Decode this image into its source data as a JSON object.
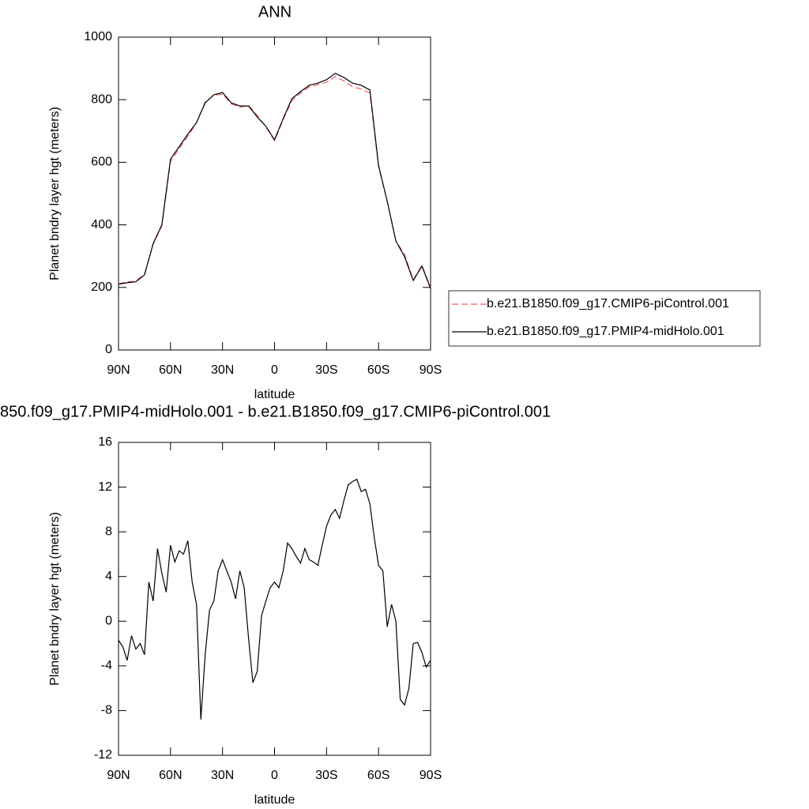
{
  "chart_data": [
    {
      "type": "line",
      "title": "ANN",
      "xlabel": "latitude",
      "ylabel": "Planet bndry layer hgt (meters)",
      "x": [
        90,
        85,
        80,
        75,
        70,
        65,
        60,
        55,
        50,
        45,
        40,
        35,
        30,
        25,
        20,
        15,
        10,
        5,
        0,
        -5,
        -10,
        -15,
        -20,
        -25,
        -30,
        -35,
        -40,
        -45,
        -50,
        -55,
        -60,
        -65,
        -70,
        -75,
        -80,
        -85,
        -90
      ],
      "series": [
        {
          "name": "b.e21.B1850.f09_g17.CMIP6-piControl.001",
          "color": "#f05a5a",
          "line_style": "dashed",
          "values": [
            212,
            218,
            220,
            243,
            338,
            396,
            603,
            644,
            683,
            726,
            793,
            814,
            818,
            787,
            776,
            782,
            750,
            713,
            669,
            736,
            797,
            821,
            841,
            848,
            856,
            874,
            860,
            841,
            834,
            821,
            585,
            476,
            348,
            306,
            224,
            271,
            200
          ]
        },
        {
          "name": "b.e21.B1850.f09_g17.PMIP4-midHolo.001",
          "color": "#000000",
          "line_style": "solid",
          "values": [
            210,
            215,
            218,
            240,
            340,
            400,
            610,
            650,
            690,
            727,
            790,
            816,
            823,
            790,
            780,
            780,
            745,
            715,
            672,
            740,
            803,
            826,
            846,
            853,
            864,
            884,
            871,
            853,
            846,
            831,
            590,
            475,
            348,
            298,
            222,
            268,
            197
          ]
        }
      ],
      "xlim": [
        90,
        -90
      ],
      "xticks": [
        {
          "value": 90,
          "label": "90N"
        },
        {
          "value": 60,
          "label": "60N"
        },
        {
          "value": 30,
          "label": "30N"
        },
        0,
        {
          "value": -30,
          "label": "30S"
        },
        {
          "value": -60,
          "label": "60S"
        },
        {
          "value": -90,
          "label": "90S"
        }
      ],
      "ylim": [
        0,
        1000
      ],
      "yticks": [
        0,
        200,
        400,
        600,
        800,
        1000
      ],
      "legend": "right"
    },
    {
      "type": "line",
      "title": "850.f09_g17.PMIP4-midHolo.001 - b.e21.B1850.f09_g17.CMIP6-piControl.001",
      "xlabel": "latitude",
      "ylabel": "Planet bndry layer hgt (meters)",
      "x": [
        90,
        87.5,
        85,
        82.5,
        80,
        77.5,
        75,
        72.5,
        70,
        67.5,
        65,
        62.5,
        60,
        57.5,
        55,
        52.5,
        50,
        47.5,
        45,
        42.5,
        40,
        37.5,
        35,
        32.5,
        30,
        27.5,
        25,
        22.5,
        20,
        17.5,
        15,
        12.5,
        10,
        7.5,
        5,
        2.5,
        0,
        -2.5,
        -5,
        -7.5,
        -10,
        -12.5,
        -15,
        -17.5,
        -20,
        -22.5,
        -25,
        -27.5,
        -30,
        -32.5,
        -35,
        -37.5,
        -40,
        -42.5,
        -45,
        -47.5,
        -50,
        -52.5,
        -55,
        -57.5,
        -60,
        -62.5,
        -65,
        -67.5,
        -70,
        -72.5,
        -75,
        -77.5,
        -80,
        -82.5,
        -85,
        -87.5,
        -90
      ],
      "series": [
        {
          "color": "#000000",
          "line_style": "solid",
          "values": [
            -1.7,
            -2.3,
            -3.5,
            -1.3,
            -2.5,
            -2.0,
            -3.0,
            3.5,
            1.8,
            6.5,
            4.3,
            2.6,
            6.8,
            5.3,
            6.3,
            6.0,
            7.2,
            3.5,
            1.5,
            -8.8,
            -3.0,
            1.0,
            1.8,
            4.5,
            5.5,
            4.5,
            3.5,
            2.0,
            4.5,
            3.0,
            -1.5,
            -5.5,
            -4.5,
            0.5,
            1.8,
            3.0,
            3.5,
            3.0,
            4.5,
            7.0,
            6.5,
            5.8,
            5.2,
            6.5,
            5.5,
            5.3,
            5.0,
            6.8,
            8.5,
            9.5,
            10.0,
            9.2,
            10.8,
            12.2,
            12.5,
            12.7,
            11.6,
            11.8,
            10.5,
            7.5,
            5.0,
            4.5,
            -0.5,
            1.5,
            0.0,
            -7.0,
            -7.5,
            -6.0,
            -2.0,
            -1.9,
            -2.8,
            -4.1,
            -3.5
          ]
        }
      ],
      "xlim": [
        90,
        -90
      ],
      "xticks": [
        {
          "value": 90,
          "label": "90N"
        },
        {
          "value": 60,
          "label": "60N"
        },
        {
          "value": 30,
          "label": "30N"
        },
        0,
        {
          "value": -30,
          "label": "30S"
        },
        {
          "value": -60,
          "label": "60S"
        },
        {
          "value": -90,
          "label": "90S"
        }
      ],
      "ylim": [
        -12,
        16
      ],
      "yticks": [
        -12,
        -8,
        -4,
        0,
        4,
        8,
        12,
        16
      ]
    }
  ]
}
